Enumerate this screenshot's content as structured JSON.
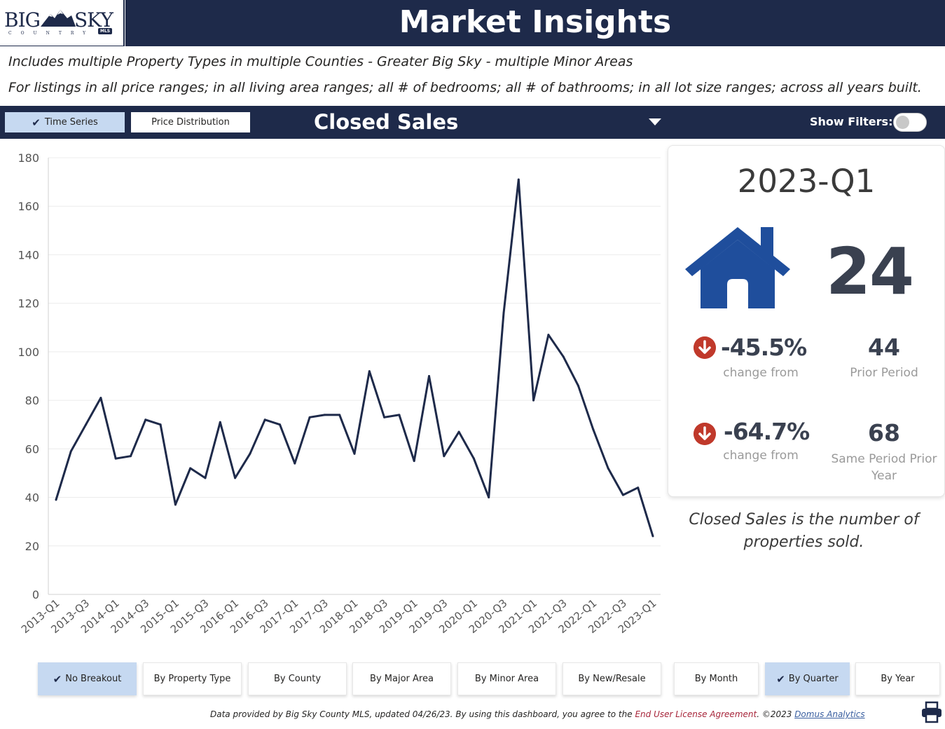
{
  "logo": {
    "big": "BIG",
    "sky": "SKY",
    "sub": "COUNTRY",
    "mls": "MLS"
  },
  "header": {
    "title": "Market Insights"
  },
  "description": {
    "line1": "Includes multiple Property Types in multiple Counties - Greater Big Sky - multiple Minor Areas",
    "line2": "For listings in all price ranges; in all living area ranges; all # of bedrooms; all # of bathrooms; in all lot size ranges; across all years built."
  },
  "controls": {
    "time_series": "Time Series",
    "price_distribution": "Price Distribution",
    "metric": "Closed Sales",
    "show_filters": "Show Filters:"
  },
  "chart_data": {
    "type": "line",
    "x": [
      "2013-Q1",
      "2013-Q2",
      "2013-Q3",
      "2013-Q4",
      "2014-Q1",
      "2014-Q2",
      "2014-Q3",
      "2014-Q4",
      "2015-Q1",
      "2015-Q2",
      "2015-Q3",
      "2015-Q4",
      "2016-Q1",
      "2016-Q2",
      "2016-Q3",
      "2016-Q4",
      "2017-Q1",
      "2017-Q2",
      "2017-Q3",
      "2017-Q4",
      "2018-Q1",
      "2018-Q2",
      "2018-Q3",
      "2018-Q4",
      "2019-Q1",
      "2019-Q2",
      "2019-Q3",
      "2019-Q4",
      "2020-Q1",
      "2020-Q2",
      "2020-Q3",
      "2020-Q4",
      "2021-Q1",
      "2021-Q2",
      "2021-Q3",
      "2021-Q4",
      "2022-Q1",
      "2022-Q2",
      "2022-Q3",
      "2022-Q4",
      "2023-Q1"
    ],
    "tick_labels": [
      "2013-Q1",
      "2013-Q3",
      "2014-Q1",
      "2014-Q3",
      "2015-Q1",
      "2015-Q3",
      "2016-Q1",
      "2016-Q3",
      "2017-Q1",
      "2017-Q3",
      "2018-Q1",
      "2018-Q3",
      "2019-Q1",
      "2019-Q3",
      "2020-Q1",
      "2020-Q3",
      "2021-Q1",
      "2021-Q3",
      "2022-Q1",
      "2022-Q3",
      "2023-Q1"
    ],
    "values": [
      39,
      59,
      70,
      81,
      56,
      57,
      72,
      70,
      37,
      52,
      48,
      71,
      48,
      58,
      72,
      70,
      54,
      73,
      74,
      74,
      58,
      92,
      73,
      74,
      55,
      90,
      57,
      67,
      56,
      40,
      116,
      171,
      80,
      107,
      98,
      86,
      68,
      52,
      41,
      44,
      24
    ],
    "yticks": [
      0,
      20,
      40,
      60,
      80,
      100,
      120,
      140,
      160,
      180
    ],
    "ylim": [
      0,
      180
    ],
    "grid": true,
    "line_color": "#1e2a4a"
  },
  "kpi": {
    "period": "2023-Q1",
    "value": "24",
    "change1_pct": "-45.5%",
    "change1_label": "change from",
    "prior_value": "44",
    "prior_label": "Prior Period",
    "change2_pct": "-64.7%",
    "change2_label": "change from",
    "same_value": "68",
    "same_label_1": "Same Period Prior",
    "same_label_2": "Year",
    "icon": "house-icon"
  },
  "definition": {
    "line1": "Closed Sales is the number of",
    "line2": "properties sold."
  },
  "breakout_buttons": [
    {
      "label": "No Breakout",
      "active": true
    },
    {
      "label": "By Property Type",
      "active": false
    },
    {
      "label": "By County",
      "active": false
    },
    {
      "label": "By Major Area",
      "active": false
    },
    {
      "label": "By Minor Area",
      "active": false
    },
    {
      "label": "By New/Resale",
      "active": false
    }
  ],
  "period_buttons": [
    {
      "label": "By Month",
      "active": false
    },
    {
      "label": "By Quarter",
      "active": true
    },
    {
      "label": "By Year",
      "active": false
    }
  ],
  "footer": {
    "part1": "Data provided by Big Sky County MLS, updated 04/26/23.  By using this dashboard, you agree to the ",
    "eula": "End User License Agreement",
    "part2": ".  ©2023 ",
    "domus": "Domus Analytics"
  },
  "colors": {
    "navy": "#1e2a4a",
    "active": "#c6d9f1",
    "icon_blue": "#1f4e9c",
    "down_red": "#c0392b"
  }
}
